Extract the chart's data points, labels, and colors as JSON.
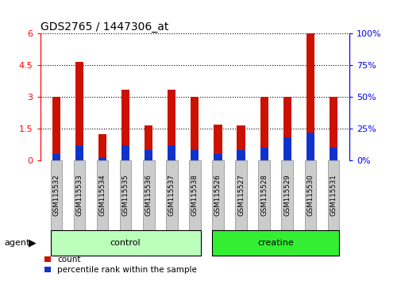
{
  "title": "GDS2765 / 1447306_at",
  "samples": [
    "GSM115532",
    "GSM115533",
    "GSM115534",
    "GSM115535",
    "GSM115536",
    "GSM115537",
    "GSM115538",
    "GSM115526",
    "GSM115527",
    "GSM115528",
    "GSM115529",
    "GSM115530",
    "GSM115531"
  ],
  "count_values": [
    3.0,
    4.65,
    1.25,
    3.35,
    1.65,
    3.35,
    3.0,
    1.7,
    1.65,
    3.0,
    3.0,
    6.0,
    3.0
  ],
  "percentile_values": [
    5,
    12,
    2,
    12,
    8,
    12,
    8,
    5,
    8,
    10,
    18,
    22,
    10
  ],
  "left_ylim": [
    0,
    6
  ],
  "right_ylim": [
    0,
    100
  ],
  "left_yticks": [
    0,
    1.5,
    3,
    4.5,
    6
  ],
  "right_yticks": [
    0,
    25,
    50,
    75,
    100
  ],
  "bar_color_red": "#cc1100",
  "bar_color_blue": "#1133cc",
  "bar_width": 0.35,
  "control_indices": [
    0,
    1,
    2,
    3,
    4,
    5,
    6
  ],
  "creatine_indices": [
    7,
    8,
    9,
    10,
    11,
    12
  ],
  "control_color": "#bbffbb",
  "creatine_color": "#33ee33",
  "tick_bg_color": "#cccccc",
  "tick_border_color": "#888888",
  "agent_label": "agent",
  "legend_count": "count",
  "legend_percentile": "percentile rank within the sample"
}
